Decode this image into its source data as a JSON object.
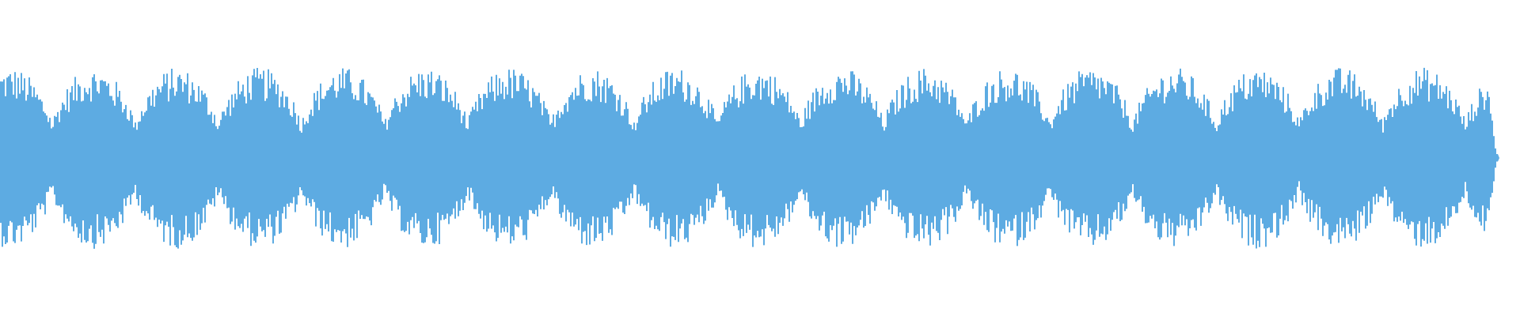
{
  "waveform": {
    "color": "#5dabe2",
    "background": "#ffffff",
    "envelope_cycles": 18
  }
}
